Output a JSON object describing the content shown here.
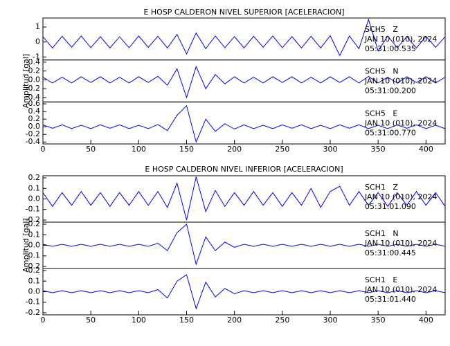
{
  "chart_data": [
    {
      "type": "line",
      "title": "E HOSP CALDERON NIVEL SUPERIOR [ACELERACION]",
      "ylabel": "Amplitud [gal]",
      "color": "#0000ff",
      "x": [
        0,
        10,
        20,
        30,
        40,
        50,
        60,
        70,
        80,
        90,
        100,
        110,
        120,
        130,
        140,
        150,
        160,
        170,
        180,
        190,
        200,
        210,
        220,
        230,
        240,
        250,
        260,
        270,
        280,
        290,
        300,
        310,
        320,
        330,
        340,
        350,
        360,
        370,
        380,
        390,
        400,
        410,
        420
      ],
      "xlim": [
        0,
        420
      ],
      "xticks": [
        0,
        50,
        100,
        150,
        200,
        250,
        300,
        350,
        400
      ],
      "panels": [
        {
          "name": "SCH5   Z",
          "date": "JAN 10 (010), 2024",
          "time": "05:31:00.535",
          "ylim": [
            -1.2,
            1.6
          ],
          "yticks": [
            -1,
            0,
            1
          ],
          "values": [
            0.35,
            -0.4,
            0.38,
            -0.35,
            0.4,
            -0.38,
            0.36,
            -0.4,
            0.35,
            -0.38,
            0.4,
            -0.36,
            0.38,
            -0.4,
            0.5,
            -0.8,
            0.6,
            -0.45,
            0.4,
            -0.38,
            0.36,
            -0.4,
            0.38,
            -0.35,
            0.4,
            -0.38,
            0.36,
            -0.4,
            0.38,
            -0.4,
            0.42,
            -0.9,
            0.4,
            -0.45,
            1.5,
            -0.6,
            0.4,
            -0.38,
            0.36,
            -0.4,
            0.38,
            -0.36,
            0.35
          ]
        },
        {
          "name": "SCH5   N",
          "date": "JAN 10 (010), 2024",
          "time": "05:31:00.200",
          "ylim": [
            -0.5,
            0.45
          ],
          "yticks": [
            -0.4,
            -0.2,
            {
              "value": 0,
              "label": "0.0"
            },
            0.2,
            0.4
          ],
          "values": [
            0.06,
            -0.07,
            0.06,
            -0.07,
            0.07,
            -0.06,
            0.07,
            -0.07,
            0.06,
            -0.07,
            0.07,
            -0.06,
            0.08,
            -0.12,
            0.25,
            -0.4,
            0.3,
            -0.2,
            0.12,
            -0.09,
            0.07,
            -0.07,
            0.06,
            -0.07,
            0.07,
            -0.06,
            0.07,
            -0.07,
            0.06,
            -0.07,
            0.07,
            -0.06,
            0.07,
            -0.07,
            0.08,
            -0.07,
            0.06,
            -0.07,
            0.07,
            -0.06,
            0.07,
            -0.07,
            0.06
          ]
        },
        {
          "name": "SCH5   E",
          "date": "JAN 10 (010), 2024",
          "time": "05:31:00.770",
          "ylim": [
            -0.45,
            0.65
          ],
          "yticks": [
            -0.4,
            -0.2,
            {
              "value": 0,
              "label": "0.0"
            },
            0.2,
            0.4,
            0.6
          ],
          "values": [
            0.05,
            -0.04,
            0.05,
            -0.05,
            0.04,
            -0.05,
            0.05,
            -0.04,
            0.05,
            -0.05,
            0.04,
            -0.05,
            0.06,
            -0.1,
            0.3,
            0.55,
            -0.4,
            0.2,
            -0.12,
            0.08,
            -0.06,
            0.05,
            -0.05,
            0.04,
            -0.05,
            0.05,
            -0.04,
            0.05,
            -0.05,
            0.04,
            -0.05,
            0.05,
            -0.04,
            0.05,
            -0.05,
            0.04,
            -0.05,
            0.05,
            -0.04,
            0.05,
            -0.05,
            0.04,
            -0.05
          ]
        }
      ]
    },
    {
      "type": "line",
      "title": "E HOSP CALDERON NIVEL INFERIOR [ACELERACION]",
      "ylabel": "Amplitud [gal]",
      "color": "#0000ff",
      "x": [
        0,
        10,
        20,
        30,
        40,
        50,
        60,
        70,
        80,
        90,
        100,
        110,
        120,
        130,
        140,
        150,
        160,
        170,
        180,
        190,
        200,
        210,
        220,
        230,
        240,
        250,
        260,
        270,
        280,
        290,
        300,
        310,
        320,
        330,
        340,
        350,
        360,
        370,
        380,
        390,
        400,
        410,
        420
      ],
      "xlim": [
        0,
        420
      ],
      "xticks": [
        0,
        50,
        100,
        150,
        200,
        250,
        300,
        350,
        400
      ],
      "panels": [
        {
          "name": "SCH1   Z",
          "date": "JAN 10 (010), 2024",
          "time": "05:31:01.090",
          "ylim": [
            -0.22,
            0.22
          ],
          "yticks": [
            -0.2,
            -0.1,
            {
              "value": 0,
              "label": "0.0"
            },
            0.1,
            0.2
          ],
          "values": [
            0.06,
            -0.07,
            0.06,
            -0.06,
            0.07,
            -0.06,
            0.06,
            -0.07,
            0.06,
            -0.06,
            0.07,
            -0.06,
            0.07,
            -0.08,
            0.15,
            -0.2,
            0.21,
            -0.12,
            0.08,
            -0.07,
            0.06,
            -0.06,
            0.07,
            -0.06,
            0.06,
            -0.07,
            0.06,
            -0.06,
            0.1,
            -0.08,
            0.07,
            0.12,
            -0.06,
            0.07,
            -0.06,
            0.06,
            -0.07,
            0.06,
            -0.06,
            0.07,
            -0.06,
            0.06,
            -0.07
          ]
        },
        {
          "name": "SCH1   N",
          "date": "JAN 10 (010), 2024",
          "time": "05:31:00.445",
          "ylim": [
            -0.22,
            0.22
          ],
          "yticks": [
            -0.2,
            -0.1,
            {
              "value": 0,
              "label": "0.0"
            },
            0.1,
            0.2
          ],
          "values": [
            0.01,
            -0.01,
            0.01,
            -0.01,
            0.01,
            -0.01,
            0.01,
            -0.01,
            0.01,
            -0.01,
            0.01,
            -0.01,
            0.02,
            -0.05,
            0.12,
            0.2,
            -0.18,
            0.08,
            -0.05,
            0.03,
            -0.02,
            0.01,
            -0.01,
            0.01,
            -0.01,
            0.01,
            -0.01,
            0.01,
            -0.01,
            0.01,
            -0.01,
            0.01,
            -0.01,
            0.01,
            -0.01,
            0.01,
            -0.01,
            0.01,
            -0.01,
            0.01,
            -0.01,
            0.01,
            -0.01
          ]
        },
        {
          "name": "SCH1   E",
          "date": "JAN 10 (010), 2024",
          "time": "05:31:01.440",
          "ylim": [
            -0.22,
            0.22
          ],
          "yticks": [
            -0.2,
            -0.1,
            {
              "value": 0,
              "label": "0.0"
            },
            0.1,
            0.2
          ],
          "values": [
            0.01,
            -0.01,
            0.01,
            -0.01,
            0.01,
            -0.01,
            0.01,
            -0.01,
            0.01,
            -0.01,
            0.01,
            -0.01,
            0.02,
            -0.06,
            0.1,
            0.16,
            -0.16,
            0.09,
            -0.05,
            0.03,
            -0.02,
            0.01,
            -0.01,
            0.01,
            -0.01,
            0.01,
            -0.01,
            0.01,
            -0.01,
            0.01,
            -0.01,
            0.01,
            -0.01,
            0.01,
            -0.01,
            0.01,
            -0.01,
            0.01,
            -0.01,
            0.01,
            -0.01,
            0.01,
            -0.01
          ]
        }
      ]
    }
  ]
}
